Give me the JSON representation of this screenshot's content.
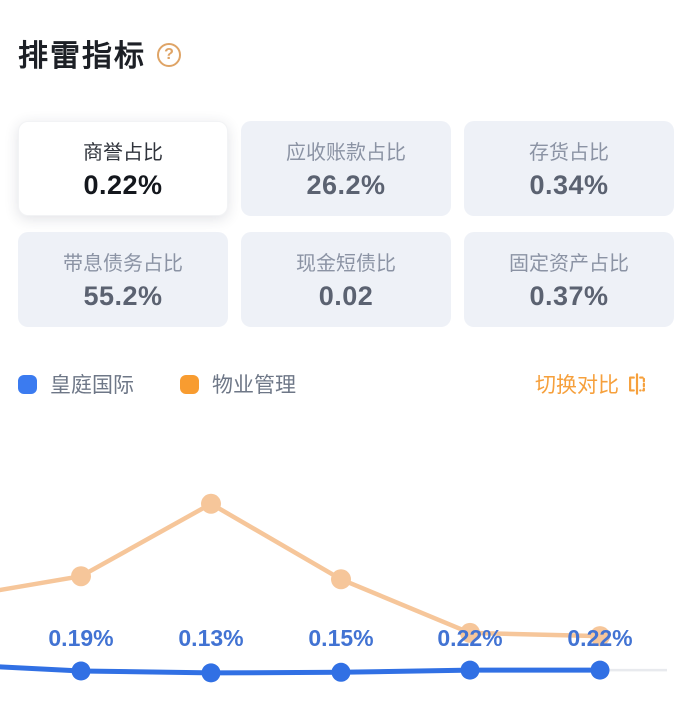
{
  "header": {
    "title": "排雷指标",
    "help_text": "?"
  },
  "metrics": {
    "items": [
      {
        "label": "商誉占比",
        "value": "0.22%",
        "selected": true
      },
      {
        "label": "应收账款占比",
        "value": "26.2%",
        "selected": false
      },
      {
        "label": "存货占比",
        "value": "0.34%",
        "selected": false
      },
      {
        "label": "带息债务占比",
        "value": "55.2%",
        "selected": false
      },
      {
        "label": "现金短债比",
        "value": "0.02",
        "selected": false
      },
      {
        "label": "固定资产占比",
        "value": "0.37%",
        "selected": false
      }
    ]
  },
  "legend": {
    "items": [
      {
        "label": "皇庭国际",
        "color": "#3b7bf0"
      },
      {
        "label": "物业管理",
        "color": "#f89c30"
      }
    ]
  },
  "switch": {
    "label": "切换对比"
  },
  "colors": {
    "accent_orange": "#f6a03c",
    "chart_label": "#4273d3",
    "axis_extension": "#e8eaee"
  },
  "chart_data": {
    "type": "line",
    "metric": "商誉占比",
    "value_suffix": "%",
    "x_labels_visible": false,
    "grid": false,
    "legend_position": "top-left",
    "ylim": [
      0,
      6
    ],
    "series": [
      {
        "name": "皇庭国际",
        "color": "#3170e4",
        "first_point_offscreen": true,
        "values": [
          0.4,
          0.19,
          0.13,
          0.15,
          0.22,
          0.22
        ],
        "labels": [
          null,
          "0.19%",
          "0.13%",
          "0.15%",
          "0.22%",
          "0.22%"
        ],
        "values_estimated": false
      },
      {
        "name": "物业管理",
        "color": "#f6c69a",
        "first_point_offscreen": true,
        "values": [
          2.5,
          3.2,
          5.5,
          3.1,
          1.4,
          1.3
        ],
        "labels": [],
        "values_estimated": true
      }
    ]
  }
}
